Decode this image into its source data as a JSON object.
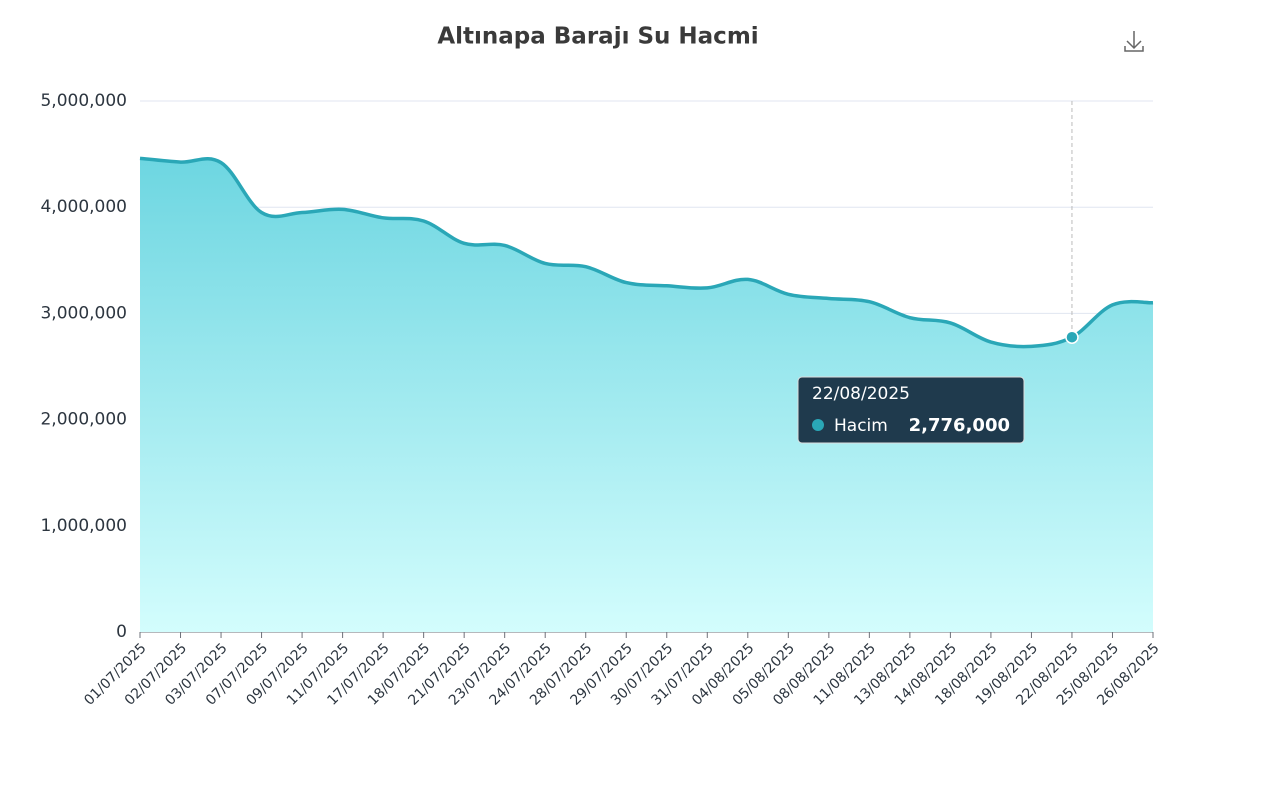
{
  "chart_data": {
    "type": "line",
    "title": "Altınapa Barajı Su Hacmi",
    "categories": [
      "01/07/2025",
      "02/07/2025",
      "03/07/2025",
      "07/07/2025",
      "09/07/2025",
      "11/07/2025",
      "17/07/2025",
      "18/07/2025",
      "21/07/2025",
      "23/07/2025",
      "24/07/2025",
      "28/07/2025",
      "29/07/2025",
      "30/07/2025",
      "31/07/2025",
      "04/08/2025",
      "05/08/2025",
      "08/08/2025",
      "11/08/2025",
      "13/08/2025",
      "14/08/2025",
      "18/08/2025",
      "19/08/2025",
      "22/08/2025",
      "25/08/2025",
      "26/08/2025"
    ],
    "series": [
      {
        "name": "Hacim",
        "color": "#2aa7b7",
        "values": [
          4460000,
          4425000,
          4420000,
          3950000,
          3950000,
          3980000,
          3900000,
          3870000,
          3660000,
          3640000,
          3470000,
          3440000,
          3290000,
          3260000,
          3240000,
          3320000,
          3180000,
          3140000,
          3110000,
          2960000,
          2910000,
          2730000,
          2690000,
          2776000,
          3080000,
          3100000
        ],
        "value_labels": [
          null,
          null,
          null,
          null,
          null,
          null,
          null,
          null,
          null,
          null,
          null,
          null,
          null,
          null,
          null,
          null,
          null,
          null,
          null,
          null,
          null,
          null,
          null,
          "2,776,000",
          null,
          null
        ]
      }
    ],
    "ylim": [
      0,
      5000000
    ],
    "yticks": [
      0,
      {
        "value": 1000000,
        "label": "1,000,000"
      },
      {
        "value": 2000000,
        "label": "2,000,000"
      },
      {
        "value": 3000000,
        "label": "3,000,000"
      },
      {
        "value": 4000000,
        "label": "4,000,000"
      },
      {
        "value": 5000000,
        "label": "5,000,000"
      }
    ],
    "grid": true,
    "area": true
  }
}
